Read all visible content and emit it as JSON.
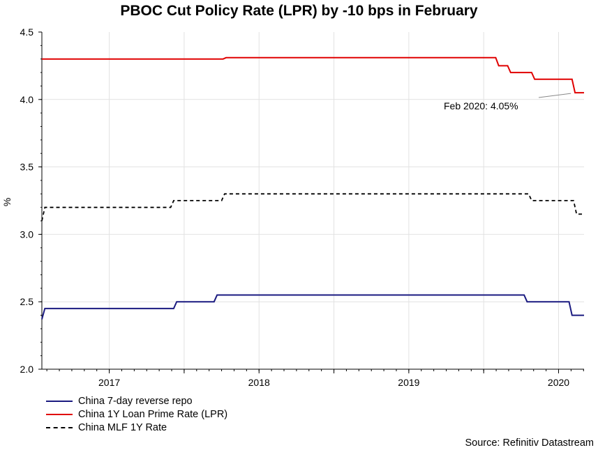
{
  "chart_data": {
    "type": "line",
    "title": "PBOC Cut Policy Rate (LPR) by -10 bps in February",
    "ylabel": "%",
    "xlabel": "",
    "ylim": [
      2.0,
      4.5
    ],
    "xlim": [
      2016.55,
      2020.17
    ],
    "y_ticks": [
      "2.0",
      "2.5",
      "3.0",
      "3.5",
      "4.0",
      "4.5"
    ],
    "x_tick_labels": [
      {
        "label": "2017",
        "pos": 2017.0
      },
      {
        "label": "2018",
        "pos": 2018.0
      },
      {
        "label": "2019",
        "pos": 2019.0
      },
      {
        "label": "2020",
        "pos": 2020.0
      }
    ],
    "series": [
      {
        "name": "China 7-day reverse repo",
        "color": "#1a1a80",
        "style": "solid",
        "points": [
          [
            2016.55,
            2.37
          ],
          [
            2016.57,
            2.45
          ],
          [
            2017.43,
            2.45
          ],
          [
            2017.45,
            2.5
          ],
          [
            2017.7,
            2.5
          ],
          [
            2017.72,
            2.55
          ],
          [
            2019.77,
            2.55
          ],
          [
            2019.79,
            2.5
          ],
          [
            2020.07,
            2.5
          ],
          [
            2020.09,
            2.4
          ],
          [
            2020.17,
            2.4
          ]
        ]
      },
      {
        "name": "China 1Y Loan Prime Rate (LPR)",
        "color": "#e00000",
        "style": "solid",
        "points": [
          [
            2016.55,
            4.3
          ],
          [
            2017.76,
            4.3
          ],
          [
            2017.78,
            4.31
          ],
          [
            2019.58,
            4.31
          ],
          [
            2019.6,
            4.25
          ],
          [
            2019.66,
            4.25
          ],
          [
            2019.68,
            4.2
          ],
          [
            2019.82,
            4.2
          ],
          [
            2019.84,
            4.15
          ],
          [
            2020.09,
            4.15
          ],
          [
            2020.11,
            4.05
          ],
          [
            2020.17,
            4.05
          ]
        ]
      },
      {
        "name": "China MLF 1Y Rate",
        "color": "#000000",
        "style": "dashed",
        "points": [
          [
            2016.55,
            3.1
          ],
          [
            2016.57,
            3.2
          ],
          [
            2017.41,
            3.2
          ],
          [
            2017.43,
            3.25
          ],
          [
            2017.75,
            3.25
          ],
          [
            2017.77,
            3.3
          ],
          [
            2019.8,
            3.3
          ],
          [
            2019.82,
            3.25
          ],
          [
            2020.1,
            3.25
          ],
          [
            2020.12,
            3.15
          ],
          [
            2020.17,
            3.15
          ]
        ]
      }
    ],
    "annotation": {
      "text": "Feb 2020: 4.05%",
      "x": 2020.11,
      "y": 4.05
    }
  },
  "legend": {
    "items": [
      {
        "label": "China 7-day reverse repo",
        "color": "#1a1a80",
        "style": "solid"
      },
      {
        "label": "China 1Y Loan Prime Rate (LPR)",
        "color": "#e00000",
        "style": "solid"
      },
      {
        "label": "China MLF 1Y Rate",
        "color": "#000000",
        "style": "dashed"
      }
    ]
  },
  "source": "Source: Refinitiv Datastream"
}
